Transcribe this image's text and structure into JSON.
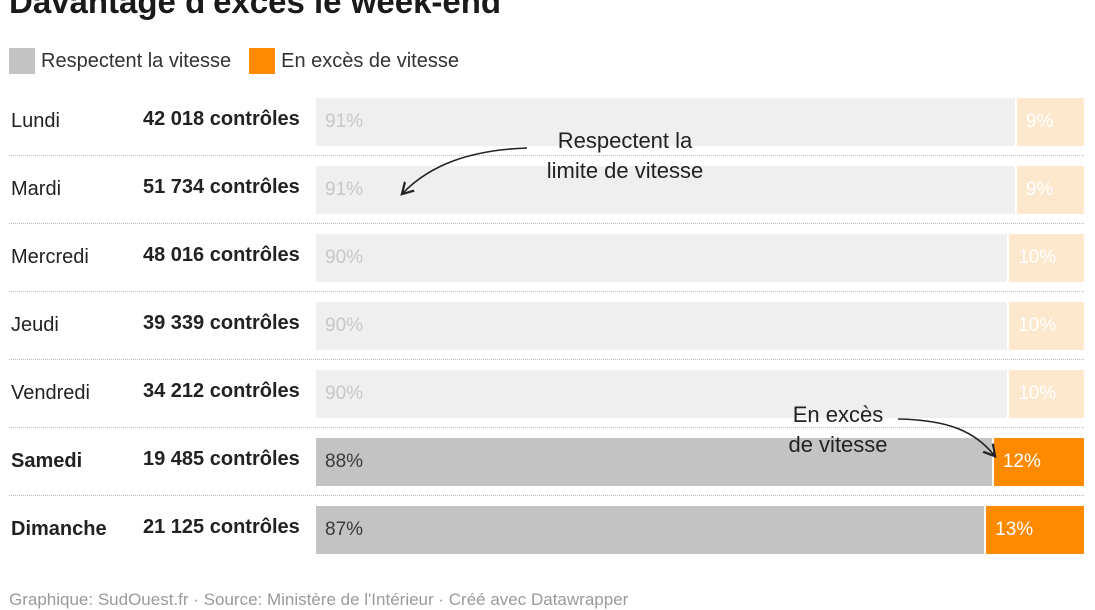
{
  "title": "Davantage d'excès le week-end",
  "legend": {
    "respect_label": "Respectent la vitesse",
    "excess_label": "En excès de vitesse",
    "respect_color": "#c3c3c3",
    "excess_color": "#ff8a00"
  },
  "annotations": {
    "respect": {
      "line1": "Respectent la",
      "line2": "limite de vitesse"
    },
    "excess": {
      "line1": "En excès",
      "line2": "de vitesse"
    }
  },
  "footer": "Graphique: SudOuest.fr · Source: Ministère de l'Intérieur · Créé avec Datawrapper",
  "chart_data": {
    "type": "bar",
    "stacked": true,
    "orientation": "horizontal",
    "normalized_percent": true,
    "title": "Davantage d'excès le week-end",
    "categories": [
      "Lundi",
      "Mardi",
      "Mercredi",
      "Jeudi",
      "Vendredi",
      "Samedi",
      "Dimanche"
    ],
    "controls": [
      "42 018 contrôles",
      "51 734 contrôles",
      "48 016 contrôles",
      "39 339 contrôles",
      "34 212 contrôles",
      "19 485 contrôles",
      "21 125 contrôles"
    ],
    "highlighted": [
      "Samedi",
      "Dimanche"
    ],
    "series": [
      {
        "name": "Respectent la vitesse",
        "values": [
          91,
          91,
          90,
          90,
          90,
          88,
          87
        ],
        "labels": [
          "91%",
          "91%",
          "90%",
          "90%",
          "90%",
          "88%",
          "87%"
        ]
      },
      {
        "name": "En excès de vitesse",
        "values": [
          9,
          9,
          10,
          10,
          10,
          12,
          13
        ],
        "labels": [
          "9%",
          "9%",
          "10%",
          "10%",
          "10%",
          "12%",
          "13%"
        ]
      }
    ],
    "legend_position": "top-left",
    "grid": false
  }
}
